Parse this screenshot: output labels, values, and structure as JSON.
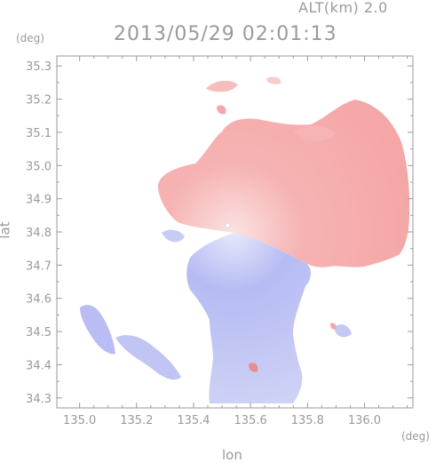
{
  "header": {
    "altitude_label": "ALT(km) 2.0",
    "datetime": "2013/05/29 02:01:13"
  },
  "axes": {
    "x_unit": "(deg)",
    "y_unit": "(deg)",
    "xlabel": "lon",
    "ylabel": "lat",
    "xlim": [
      134.92,
      136.17
    ],
    "ylim": [
      34.27,
      35.33
    ],
    "xticks": [
      {
        "value": 135.0,
        "label": "135.0"
      },
      {
        "value": 135.2,
        "label": "135.2"
      },
      {
        "value": 135.4,
        "label": "135.4"
      },
      {
        "value": 135.6,
        "label": "135.6"
      },
      {
        "value": 135.8,
        "label": "135.8"
      },
      {
        "value": 136.0,
        "label": "136.0"
      }
    ],
    "yticks": [
      {
        "value": 34.3,
        "label": "34.3"
      },
      {
        "value": 34.4,
        "label": "34.4"
      },
      {
        "value": 34.5,
        "label": "34.5"
      },
      {
        "value": 34.6,
        "label": "34.6"
      },
      {
        "value": 34.7,
        "label": "34.7"
      },
      {
        "value": 34.8,
        "label": "34.8"
      },
      {
        "value": 34.9,
        "label": "34.9"
      },
      {
        "value": 35.0,
        "label": "35.0"
      },
      {
        "value": 35.1,
        "label": "35.1"
      },
      {
        "value": 35.2,
        "label": "35.2"
      },
      {
        "value": 35.3,
        "label": "35.3"
      }
    ]
  },
  "radar": {
    "center_lon": 135.52,
    "center_lat": 34.82,
    "receding_color": "#f4a0a0",
    "approaching_color": "#a8aef0",
    "axis_color": "#9a9a9a"
  }
}
